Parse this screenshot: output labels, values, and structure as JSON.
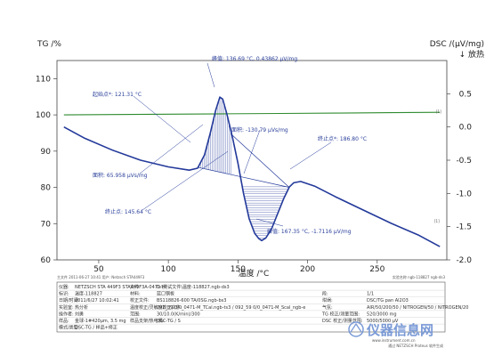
{
  "chart_data": {
    "type": "line",
    "xlabel": "温度 /°C",
    "ylabel_left": "TG /%",
    "ylabel_right": "DSC /(μV/mg)",
    "right_direction": "↓ 放热",
    "xlim": [
      20,
      300
    ],
    "ylim_left": [
      60,
      115
    ],
    "ylim_right": [
      -2.0,
      1.0
    ],
    "x_ticks": [
      50,
      100,
      150,
      200,
      250
    ],
    "y_ticks_left": [
      60,
      70,
      80,
      90,
      100,
      110
    ],
    "y_ticks_right": [
      0.5,
      0.0,
      -0.5,
      -1.0,
      -1.5,
      -2.0
    ],
    "series": [
      {
        "axis": "left",
        "color": "#2e8b2e",
        "x": [
          25,
          60,
          100,
          140,
          180,
          220,
          260,
          295
        ],
        "y": [
          100.0,
          100.1,
          100.2,
          100.3,
          100.4,
          100.5,
          100.6,
          100.7
        ]
      },
      {
        "axis": "right",
        "color": "#23399a",
        "x": [
          25,
          40,
          60,
          80,
          100,
          115,
          121,
          126,
          130,
          134,
          137,
          139,
          142,
          146,
          150,
          154,
          158,
          162,
          165,
          167,
          170,
          174,
          178,
          183,
          187,
          190,
          195,
          205,
          220,
          240,
          260,
          280,
          295
        ],
        "y": [
          0.0,
          -0.17,
          -0.35,
          -0.5,
          -0.6,
          -0.65,
          -0.62,
          -0.42,
          -0.1,
          0.25,
          0.45,
          0.42,
          0.2,
          -0.15,
          -0.55,
          -1.0,
          -1.38,
          -1.6,
          -1.68,
          -1.71,
          -1.67,
          -1.54,
          -1.33,
          -1.07,
          -0.9,
          -0.84,
          -0.82,
          -0.89,
          -1.05,
          -1.25,
          -1.45,
          -1.63,
          -1.8
        ]
      }
    ],
    "annotations": {
      "peak1": "峰值: 136.69 °C, 0.43862 μV/mg",
      "onset": "起始点*: 121.31 °C",
      "area1": "面积: 65.958 μVs/mg",
      "end1": "终止点: 145.64 °C",
      "area2": "面积: -130.79 μVs/mg",
      "end2": "终止点*: 186.80 °C",
      "peak2": "峰值: 167.35 °C, -1.7116 μV/mg"
    },
    "curve_markers": [
      "[1]",
      "[1]"
    ]
  },
  "footer": {
    "left": "主文件    2011-06-27 10:41    用户: Netzsch STA449F3",
    "right": "实验名称 ngb-118827 ngb-ds3",
    "rows": [
      [
        "仪器:",
        "NETZSCH STA 449F3 STA449F3A-0471-M",
        "文件:",
        "D:\\测试文件\\温度-118827.ngb-ds3",
        "",
        ""
      ],
      [
        "标识:",
        "温度-118827",
        "材料:",
        "蓝口钢板",
        "段:",
        "1/1"
      ],
      [
        "日期/时间:",
        "2011/6/27 10:02:41",
        "校正文件:",
        "BS118826-600 TA/0SG.ngb-bs3",
        "坩埚:",
        "DSC/TG pan Al2O3"
      ],
      [
        "实验室:",
        "热分析",
        "温度校正/灵敏度校正文件:",
        "092_59 0/0_0471-M_TCal.ngb-ts3 / 092_59 0/0_0471-M_Scal_ngb-e",
        "气氛:",
        "AIR/50/200/50 / NITROGEN/50 / NITROGEN/20"
      ],
      [
        "操作者:",
        "刘勇",
        "范围:",
        "30/10.0(K/min)/300",
        "TG 校正/测量范围:",
        "520/3000 mg"
      ],
      [
        "样品:",
        "金球-1#420μm, 3.5 mg",
        "样品支架/热电偶:",
        "DSC-TG / S",
        "DSC 校正/测量范围:",
        "5000/5000 μV"
      ],
      [
        "模式/类型:",
        "DSC-TG / 样品+修正",
        "",
        "",
        "",
        ""
      ]
    ],
    "watermark": "仪器信息网",
    "watermark_sub": "www.instrument.com.cn",
    "bottom_note": "通过 NETZSCH Proteus 软件生成"
  }
}
